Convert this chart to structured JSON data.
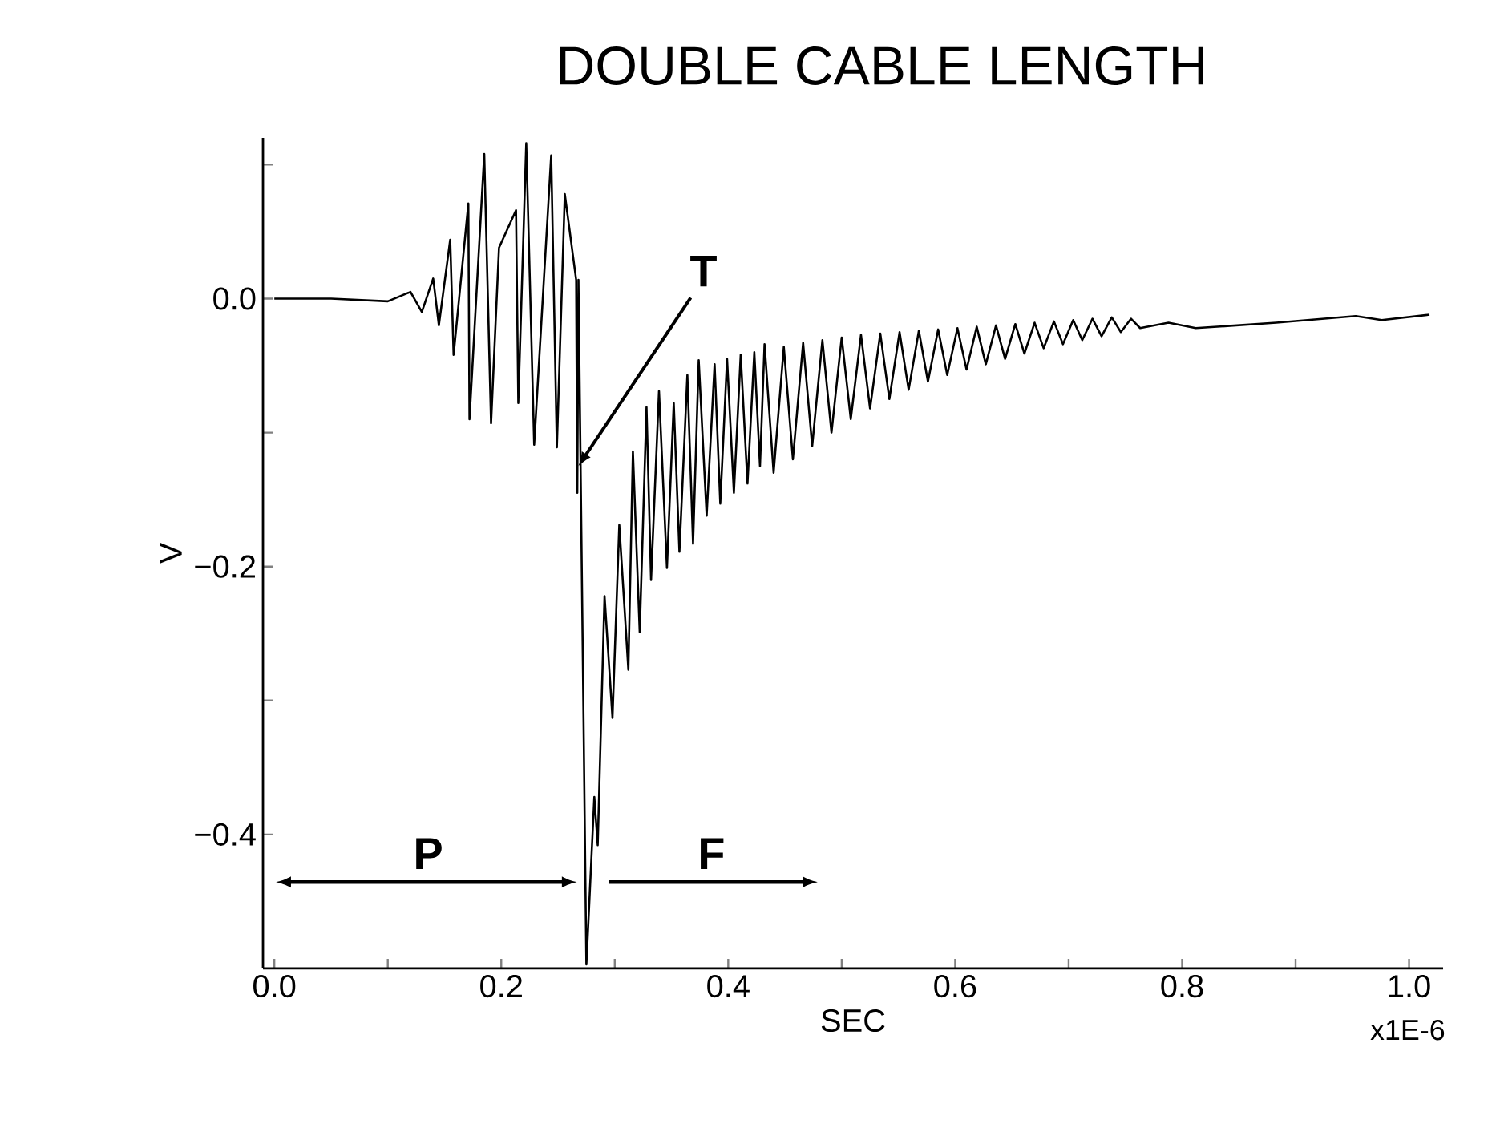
{
  "chart_data": {
    "type": "line",
    "title": "DOUBLE CABLE LENGTH",
    "xlabel": "SEC",
    "ylabel": "V",
    "xlim": [
      -0.01,
      1.03
    ],
    "ylim": [
      -0.5,
      0.12
    ],
    "xticks": [
      {
        "value": 0,
        "label": "0.0"
      },
      {
        "value": 0.1,
        "label": null
      },
      {
        "value": 0.2,
        "label": "0.2"
      },
      {
        "value": 0.3,
        "label": null
      },
      {
        "value": 0.4,
        "label": "0.4"
      },
      {
        "value": 0.5,
        "label": null
      },
      {
        "value": 0.6,
        "label": "0.6"
      },
      {
        "value": 0.7,
        "label": null
      },
      {
        "value": 0.8,
        "label": "0.8"
      },
      {
        "value": 0.9,
        "label": null
      },
      {
        "value": 1.0,
        "label": "1.0"
      }
    ],
    "yticks": [
      {
        "value": -0.4,
        "label": "−0.4"
      },
      {
        "value": -0.3,
        "label": null
      },
      {
        "value": -0.2,
        "label": "−0.2"
      },
      {
        "value": -0.1,
        "label": null
      },
      {
        "value": 0,
        "label": "0.0"
      },
      {
        "value": 0.1,
        "label": null
      }
    ],
    "x": [
      0,
      0.05,
      0.1,
      0.12,
      0.13,
      0.14,
      0.145,
      0.155,
      0.158,
      0.171,
      0.172,
      0.185,
      0.191,
      0.198,
      0.213,
      0.215,
      0.222,
      0.229,
      0.244,
      0.249,
      0.256,
      0.266,
      0.267,
      0.268,
      0.275,
      0.282,
      0.285,
      0.291,
      0.298,
      0.304,
      0.312,
      0.316,
      0.322,
      0.328,
      0.332,
      0.339,
      0.346,
      0.352,
      0.357,
      0.364,
      0.369,
      0.374,
      0.381,
      0.388,
      0.393,
      0.399,
      0.405,
      0.411,
      0.417,
      0.423,
      0.428,
      0.432,
      0.44,
      0.449,
      0.457,
      0.466,
      0.474,
      0.483,
      0.491,
      0.5,
      0.508,
      0.517,
      0.525,
      0.534,
      0.542,
      0.551,
      0.559,
      0.568,
      0.576,
      0.585,
      0.593,
      0.602,
      0.61,
      0.619,
      0.627,
      0.636,
      0.644,
      0.653,
      0.661,
      0.67,
      0.678,
      0.687,
      0.695,
      0.704,
      0.712,
      0.721,
      0.729,
      0.738,
      0.746,
      0.755,
      0.763,
      0.788,
      0.812,
      0.883,
      0.953,
      0.976,
      1.018
    ],
    "series": [
      {
        "color": "#000000",
        "values": [
          0,
          0,
          -0.002,
          0.005,
          -0.01,
          0.015,
          -0.02,
          0.044,
          -0.042,
          0.071,
          -0.09,
          0.108,
          -0.093,
          0.038,
          0.066,
          -0.078,
          0.116,
          -0.109,
          0.107,
          -0.111,
          0.078,
          0.014,
          -0.145,
          0.014,
          -0.497,
          -0.372,
          -0.408,
          -0.222,
          -0.313,
          -0.169,
          -0.277,
          -0.114,
          -0.249,
          -0.081,
          -0.21,
          -0.069,
          -0.201,
          -0.078,
          -0.189,
          -0.057,
          -0.183,
          -0.046,
          -0.162,
          -0.049,
          -0.153,
          -0.045,
          -0.145,
          -0.042,
          -0.138,
          -0.04,
          -0.125,
          -0.034,
          -0.13,
          -0.036,
          -0.12,
          -0.033,
          -0.11,
          -0.031,
          -0.1,
          -0.029,
          -0.09,
          -0.027,
          -0.082,
          -0.026,
          -0.075,
          -0.025,
          -0.068,
          -0.024,
          -0.062,
          -0.023,
          -0.057,
          -0.022,
          -0.053,
          -0.021,
          -0.049,
          -0.02,
          -0.045,
          -0.019,
          -0.041,
          -0.018,
          -0.037,
          -0.017,
          -0.034,
          -0.016,
          -0.031,
          -0.015,
          -0.028,
          -0.014,
          -0.025,
          -0.015,
          -0.022,
          -0.018,
          -0.022,
          -0.018,
          -0.013,
          -0.016,
          -0.012
        ]
      }
    ],
    "marker": "none",
    "line_style": "solid",
    "annotations": [
      {
        "text": "T",
        "x": 0.268,
        "y": -0.125
      },
      "P",
      "F",
      "x1E-6"
    ]
  }
}
